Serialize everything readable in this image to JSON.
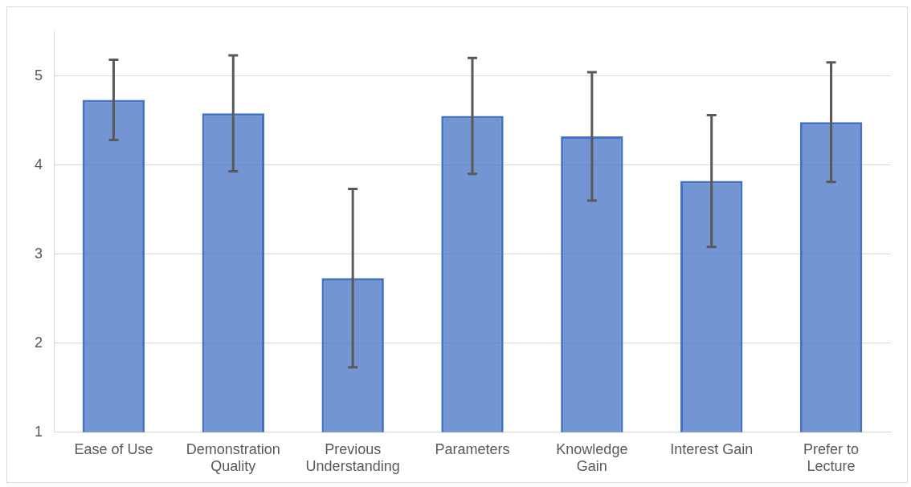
{
  "chart_data": {
    "type": "bar",
    "categories": [
      "Ease of Use",
      "Demonstration Quality",
      "Previous Understanding",
      "Parameters",
      "Knowledge Gain",
      "Interest Gain",
      "Prefer to Lecture"
    ],
    "values": [
      4.73,
      4.58,
      2.73,
      4.55,
      4.32,
      3.82,
      4.48
    ],
    "errors": [
      0.45,
      0.65,
      1.0,
      0.65,
      0.72,
      0.74,
      0.67
    ],
    "color": "#4472c4",
    "ylim": [
      1,
      5.5
    ],
    "yticks": [
      1,
      2,
      3,
      4,
      5
    ],
    "grid": "y",
    "legend": false
  }
}
